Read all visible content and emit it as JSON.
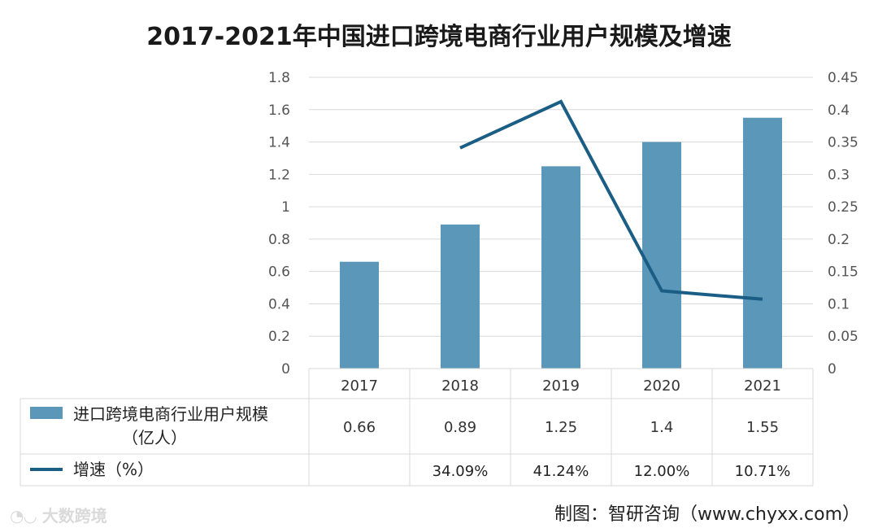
{
  "chart_data": {
    "type": "bar+line",
    "title": "2017-2021年中国进口跨境电商行业用户规模及增速",
    "categories": [
      "2017",
      "2018",
      "2019",
      "2020",
      "2021"
    ],
    "left_axis": {
      "min": 0,
      "max": 1.8,
      "step": 0.2,
      "ticks": [
        "0",
        "0.2",
        "0.4",
        "0.6",
        "0.8",
        "1",
        "1.2",
        "1.4",
        "1.6",
        "1.8"
      ]
    },
    "right_axis": {
      "min": 0,
      "max": 0.45,
      "step": 0.05,
      "ticks": [
        "0",
        "0.05",
        "0.1",
        "0.15",
        "0.2",
        "0.25",
        "0.3",
        "0.35",
        "0.4",
        "0.45"
      ]
    },
    "series": [
      {
        "name": "进口跨境电商行业用户规模",
        "name_unit": "（亿人）",
        "type": "bar",
        "axis": "left",
        "color": "#5a97b8",
        "values": [
          0.66,
          0.89,
          1.25,
          1.4,
          1.55
        ],
        "labels": [
          "0.66",
          "0.89",
          "1.25",
          "1.4",
          "1.55"
        ]
      },
      {
        "name": "增速（%）",
        "type": "line",
        "axis": "right",
        "color": "#1a5e85",
        "values": [
          null,
          0.3409,
          0.4124,
          0.12,
          0.1071
        ],
        "labels": [
          "",
          "34.09%",
          "41.24%",
          "12.00%",
          "10.71%"
        ]
      }
    ]
  },
  "source": "制图：智研咨询（www.chyxx.com）",
  "watermark": "大数跨境"
}
